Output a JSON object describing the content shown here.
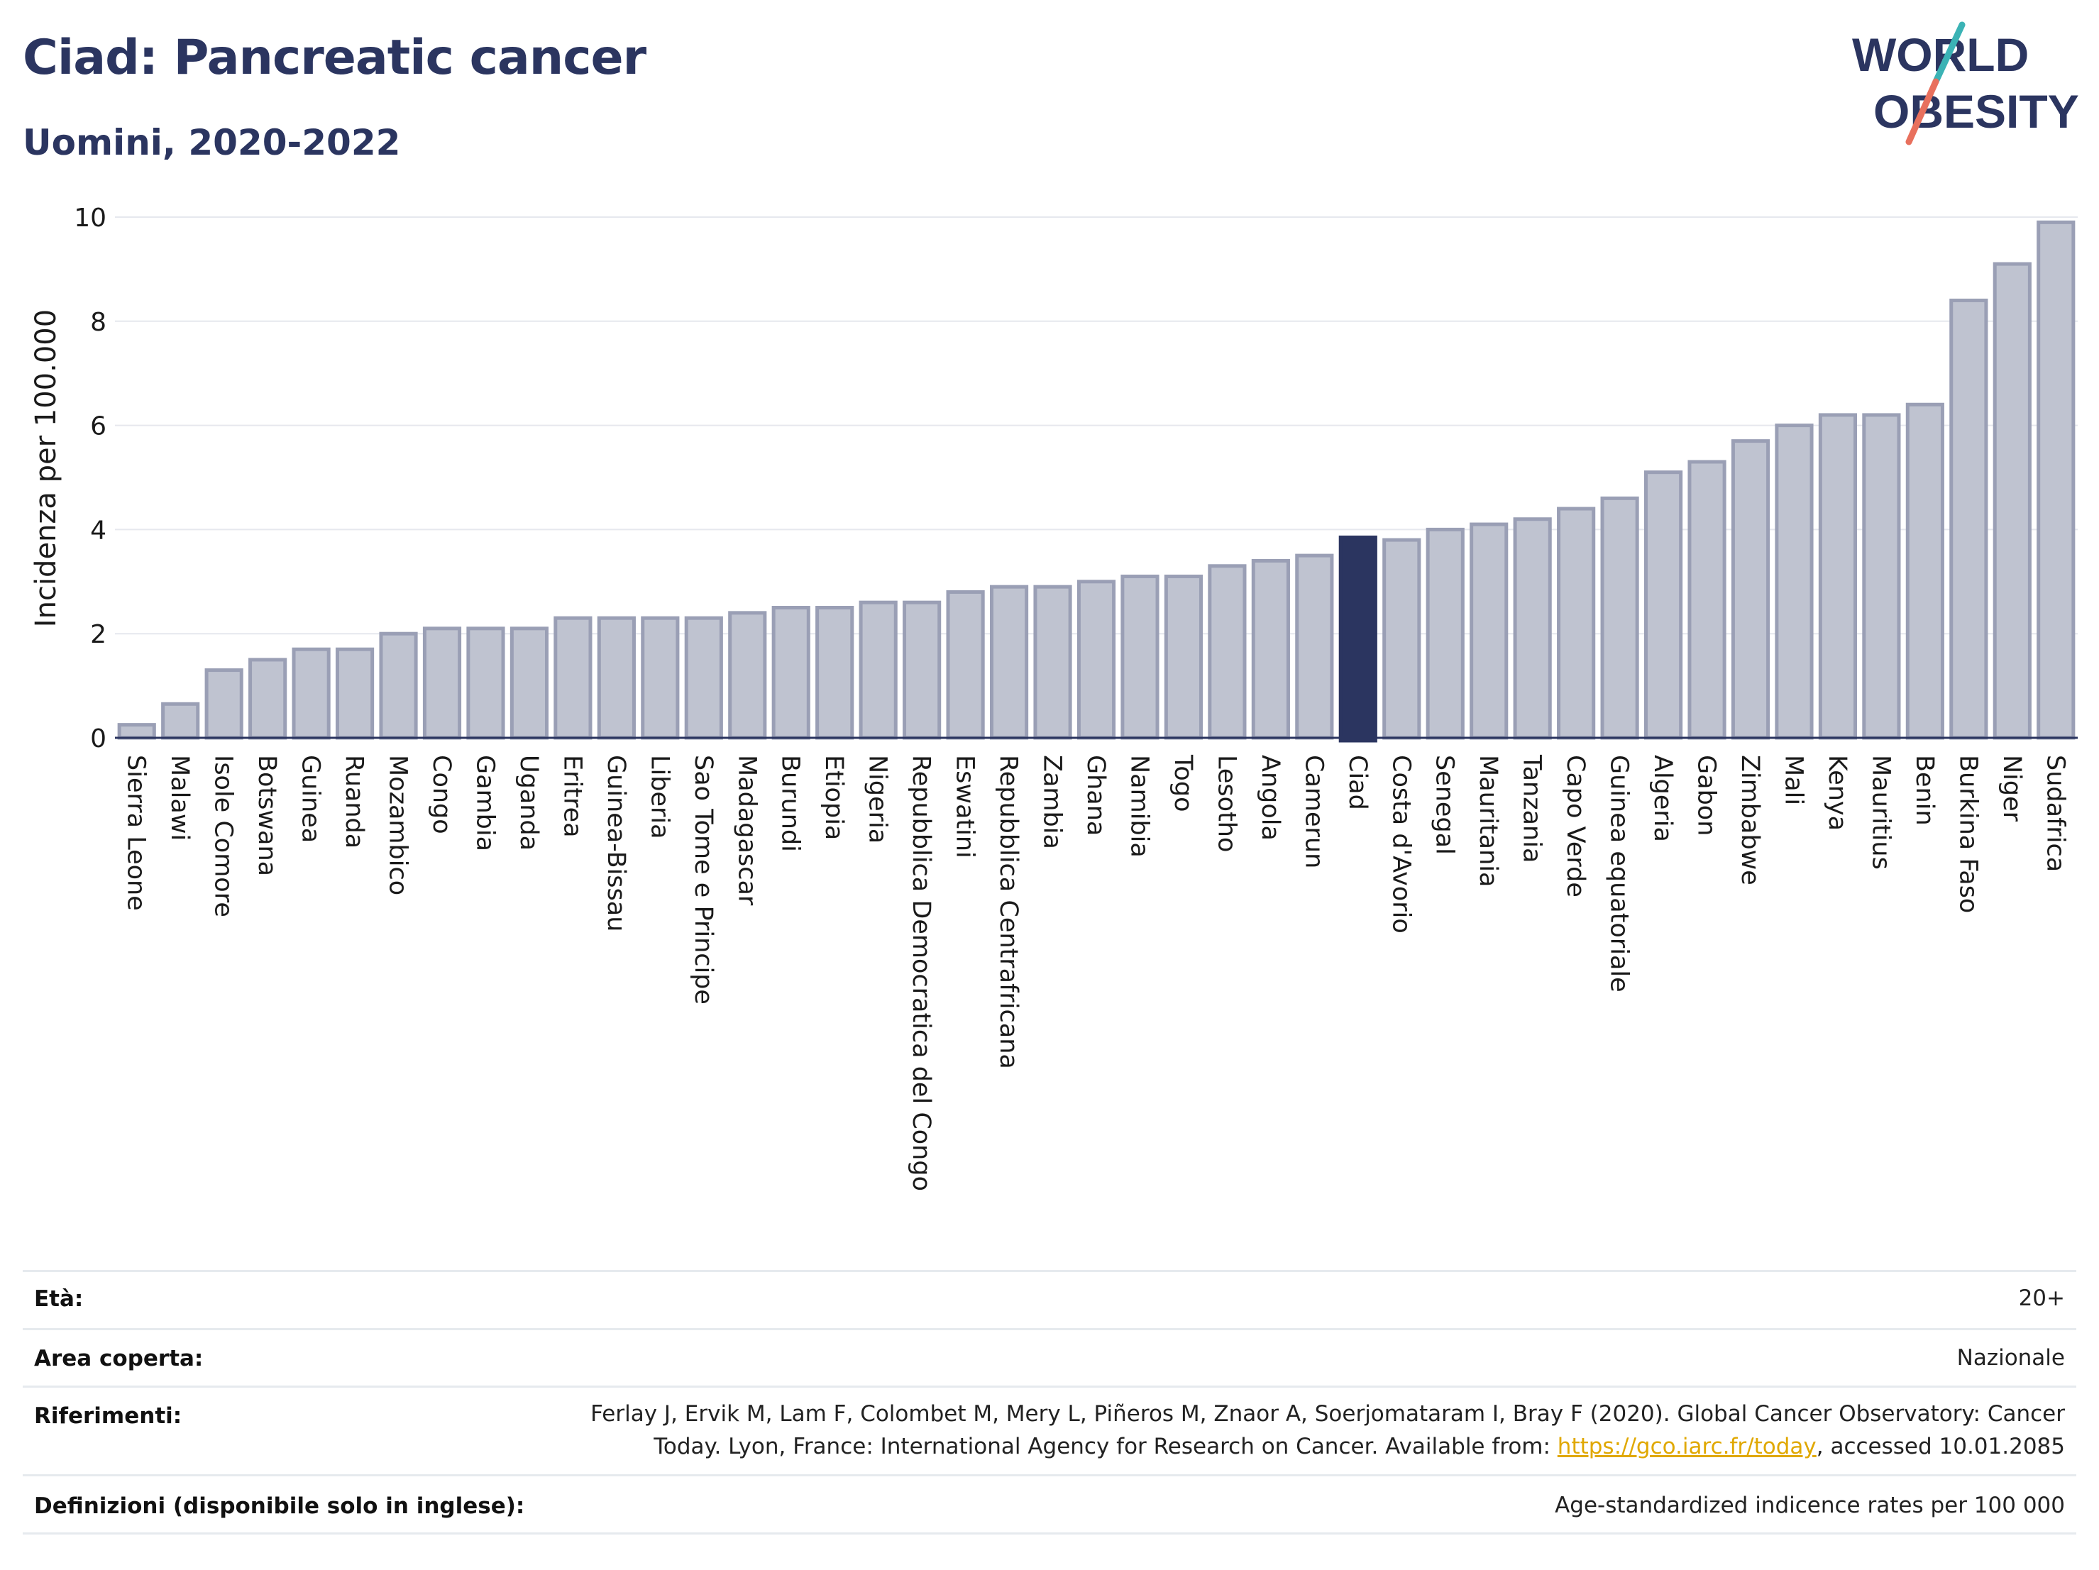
{
  "title": "Ciad: Pancreatic cancer",
  "subtitle": "Uomini, 2020-2022",
  "logo": {
    "line1": "WORLD",
    "line2": "OBESITY",
    "colors": {
      "text": "#2b3560",
      "slash_top": "#3bb3b5",
      "slash_bottom": "#e8705d"
    }
  },
  "colors": {
    "bar": "#bfc3d0",
    "bar_border": "#9a9fb5",
    "highlight": "#2b3560",
    "grid": "#e6e8ee",
    "axis": "#2b3560"
  },
  "chart_data": {
    "type": "bar",
    "ylabel": "Incidenza per 100.000",
    "ylim": [
      0,
      10
    ],
    "yticks": [
      "0",
      "2",
      "4",
      "6",
      "8",
      "10"
    ],
    "grid": true,
    "highlight": "Ciad",
    "categories": [
      "Sierra Leone",
      "Malawi",
      "Isole Comore",
      "Botswana",
      "Guinea",
      "Ruanda",
      "Mozambico",
      "Congo",
      "Gambia",
      "Uganda",
      "Eritrea",
      "Guinea-Bissau",
      "Liberia",
      "Sao Tome e Principe",
      "Madagascar",
      "Burundi",
      "Etiopia",
      "Nigeria",
      "Repubblica Democratica del Congo",
      "Eswatini",
      "Repubblica Centrafricana",
      "Zambia",
      "Ghana",
      "Namibia",
      "Togo",
      "Lesotho",
      "Angola",
      "Camerun",
      "Ciad",
      "Costa d'Avorio",
      "Senegal",
      "Mauritania",
      "Tanzania",
      "Capo Verde",
      "Guinea equatoriale",
      "Algeria",
      "Gabon",
      "Zimbabwe",
      "Mali",
      "Kenya",
      "Mauritius",
      "Benin",
      "Burkina Faso",
      "Niger",
      "Sudafrica"
    ],
    "values": [
      0.25,
      0.65,
      1.3,
      1.5,
      1.7,
      1.7,
      2.0,
      2.1,
      2.1,
      2.1,
      2.3,
      2.3,
      2.3,
      2.3,
      2.4,
      2.5,
      2.5,
      2.6,
      2.6,
      2.8,
      2.9,
      2.9,
      3.0,
      3.1,
      3.1,
      3.3,
      3.4,
      3.5,
      3.85,
      3.8,
      4.0,
      4.1,
      4.2,
      4.4,
      4.6,
      5.1,
      5.3,
      5.7,
      6.0,
      6.2,
      6.2,
      6.4,
      8.4,
      9.1,
      9.9
    ]
  },
  "meta": [
    {
      "key": "Età:",
      "value": "20+"
    },
    {
      "key": "Area coperta:",
      "value": "Nazionale"
    },
    {
      "key": "Riferimenti:",
      "value_line1": "Ferlay J, Ervik M, Lam F, Colombet M, Mery L, Piñeros M, Znaor A, Soerjomataram I, Bray F (2020). Global Cancer Observatory: Cancer",
      "value_line2_pre": "Today. Lyon, France: International Agency for Research on Cancer. Available from: ",
      "link": "https://gco.iarc.fr/today",
      "value_line2_post": ", accessed 10.01.2085"
    },
    {
      "key": "Definizioni (disponibile solo in inglese):",
      "value": "Age-standardized indicence rates per 100 000"
    }
  ]
}
